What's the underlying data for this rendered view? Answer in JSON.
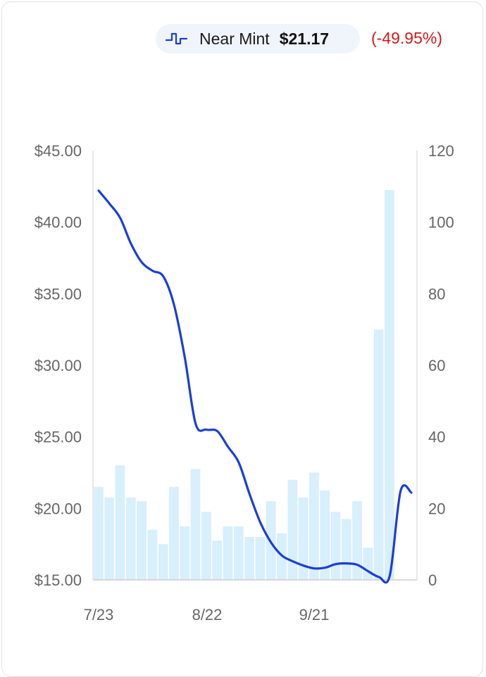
{
  "legend": {
    "icon": "step-line-icon",
    "series_label": "Near Mint",
    "current_price": "$21.17",
    "change": "(-49.95%)",
    "line_color": "#1a3fd6",
    "bar_color": "#d8effc",
    "change_color": "#d11a1a"
  },
  "chart_data": {
    "type": "line",
    "title": "",
    "xlabel": "",
    "ylabel": "",
    "x_tick_labels": [
      "7/23",
      "8/22",
      "9/21"
    ],
    "y_left": {
      "ticks": [
        "$45.00",
        "$40.00",
        "$35.00",
        "$30.00",
        "$25.00",
        "$20.00",
        "$15.00"
      ],
      "range": [
        15,
        45
      ]
    },
    "y_right": {
      "ticks": [
        "120",
        "100",
        "80",
        "60",
        "40",
        "20",
        "0"
      ],
      "range": [
        0,
        120
      ]
    },
    "grid": false,
    "series": [
      {
        "name": "Near Mint",
        "kind": "line",
        "axis": "left",
        "points": [
          [
            0,
            42.2
          ],
          [
            1,
            41.3
          ],
          [
            2,
            40.3
          ],
          [
            3,
            38.5
          ],
          [
            4,
            37.2
          ],
          [
            5,
            36.6
          ],
          [
            6,
            36.2
          ],
          [
            7,
            34.2
          ],
          [
            8,
            30.5
          ],
          [
            9,
            25.9
          ],
          [
            10,
            25.5
          ],
          [
            11,
            25.4
          ],
          [
            12,
            24.3
          ],
          [
            13,
            23.2
          ],
          [
            14,
            21.0
          ],
          [
            15,
            19.0
          ],
          [
            16,
            17.6
          ],
          [
            17,
            16.7
          ],
          [
            18,
            16.3
          ],
          [
            19,
            16.0
          ],
          [
            20,
            15.8
          ],
          [
            21,
            15.85
          ],
          [
            22,
            16.1
          ],
          [
            23,
            16.15
          ],
          [
            24,
            16.05
          ],
          [
            25,
            15.6
          ],
          [
            26,
            15.2
          ],
          [
            27,
            15.3
          ],
          [
            28,
            21.2
          ],
          [
            29,
            21.1
          ]
        ]
      },
      {
        "name": "",
        "kind": "bar",
        "axis": "right",
        "values": [
          26,
          23,
          32,
          23,
          22,
          14,
          10,
          26,
          15,
          31,
          19,
          11,
          15,
          15,
          12,
          12,
          22,
          13,
          28,
          23,
          30,
          25,
          19,
          17,
          22,
          9,
          70,
          109
        ]
      }
    ]
  }
}
